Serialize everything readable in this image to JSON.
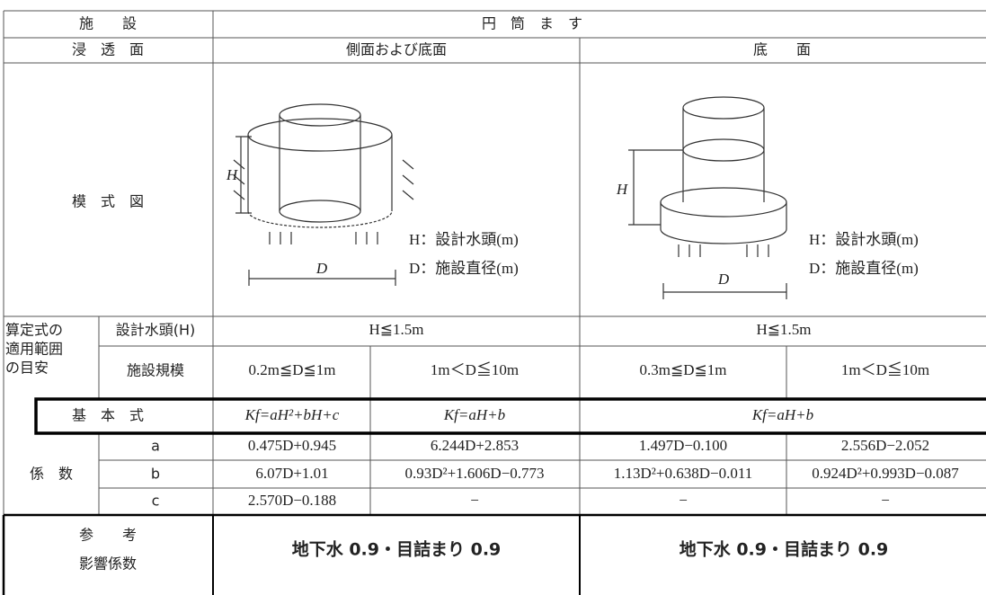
{
  "table": {
    "facility": {
      "label": "施　　設",
      "value": "円　筒　ま　す"
    },
    "infiltration_surface": {
      "label": "浸　透　面",
      "columns": [
        "側面および底面",
        "底　　面"
      ]
    },
    "diagram": {
      "label": "模　式　図",
      "panels": [
        {
          "h": "H",
          "d": "D",
          "legend": [
            "H：設計水頭(m)",
            "D：施設直径(m)"
          ]
        },
        {
          "h": "H",
          "d": "D",
          "legend": [
            "H：設計水頭(m)",
            "D：施設直径(m)"
          ]
        }
      ]
    },
    "range": {
      "label": [
        "算定式の",
        "適用範囲",
        "の目安"
      ],
      "head_label": "設計水頭(H)",
      "head": [
        "H≦1.5m",
        "H≦1.5m"
      ],
      "size_label": "施設規模",
      "size": [
        "0.2m≦D≦1m",
        "1m＜D≦10m",
        "0.3m≦D≦1m",
        "1m＜D≦10m"
      ]
    },
    "formula": {
      "label": "基　本　式",
      "values": [
        "Kf=aH²+bH+c",
        "Kf=aH+b",
        "Kf=aH+b"
      ]
    },
    "coefficients": {
      "label": "係　数",
      "rows": [
        [
          "a",
          "0.475D+0.945",
          "6.244D+2.853",
          "1.497D−0.100",
          "2.556D−2.052"
        ],
        [
          "b",
          "6.07D+1.01",
          "0.93D²+1.606D−0.773",
          "1.13D²+0.638D−0.011",
          "0.924D²+0.993D−0.087"
        ],
        [
          "c",
          "2.570D−0.188",
          "−",
          "−",
          "−"
        ]
      ]
    },
    "reference": {
      "label": [
        "参　　考",
        "影響係数"
      ],
      "values": [
        "地下水 0.9・目詰まり 0.9",
        "地下水 0.9・目詰まり 0.9"
      ]
    }
  }
}
